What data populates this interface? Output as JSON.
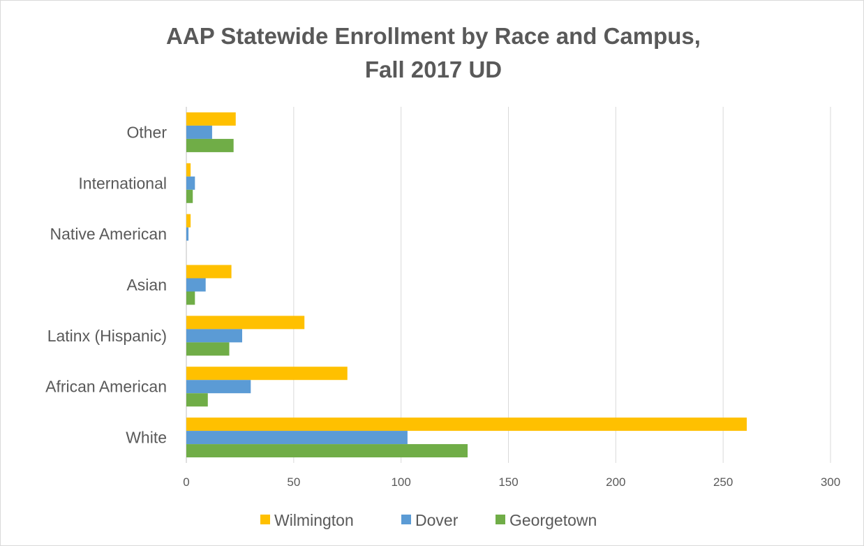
{
  "chart_data": {
    "type": "bar",
    "orientation": "horizontal",
    "title_lines": [
      "AAP Statewide Enrollment by Race and Campus,",
      "Fall 2017 UD"
    ],
    "categories": [
      "White",
      "African American",
      "Latinx (Hispanic)",
      "Asian",
      "Native American",
      "International",
      "Other"
    ],
    "series": [
      {
        "name": "Wilmington",
        "color": "#ffc000",
        "values": [
          261,
          75,
          55,
          21,
          2,
          2,
          23
        ]
      },
      {
        "name": "Dover",
        "color": "#5b9bd5",
        "values": [
          103,
          30,
          26,
          9,
          1,
          4,
          12
        ]
      },
      {
        "name": "Georgetown",
        "color": "#70ad47",
        "values": [
          131,
          10,
          20,
          4,
          0,
          3,
          22
        ]
      }
    ],
    "xlim": [
      0,
      300
    ],
    "xticks": [
      "0",
      "50",
      "100",
      "150",
      "200",
      "250",
      "300"
    ],
    "tick_values": [
      0,
      50,
      100,
      150,
      200,
      250,
      300
    ],
    "grid": true,
    "legend_position": "bottom"
  }
}
